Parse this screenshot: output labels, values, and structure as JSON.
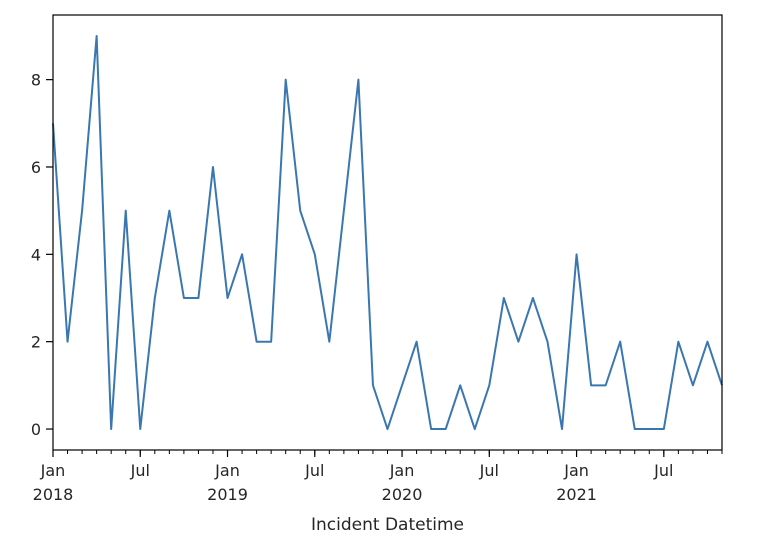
{
  "chart_data": {
    "type": "line",
    "title": "",
    "xlabel": "Incident Datetime",
    "ylabel": "",
    "x_start": "2018-01",
    "x_end": "2021-11",
    "x": [
      "2018-01",
      "2018-02",
      "2018-03",
      "2018-04",
      "2018-05",
      "2018-06",
      "2018-07",
      "2018-08",
      "2018-09",
      "2018-10",
      "2018-11",
      "2018-12",
      "2019-01",
      "2019-02",
      "2019-03",
      "2019-04",
      "2019-05",
      "2019-06",
      "2019-07",
      "2019-08",
      "2019-09",
      "2019-10",
      "2019-11",
      "2019-12",
      "2020-01",
      "2020-02",
      "2020-03",
      "2020-04",
      "2020-05",
      "2020-06",
      "2020-07",
      "2020-08",
      "2020-09",
      "2020-10",
      "2020-11",
      "2020-12",
      "2021-01",
      "2021-02",
      "2021-03",
      "2021-04",
      "2021-05",
      "2021-06",
      "2021-07",
      "2021-08",
      "2021-09",
      "2021-10",
      "2021-11"
    ],
    "series": [
      {
        "color": "#3a77b0",
        "values": [
          7,
          2,
          5,
          9,
          0,
          5,
          0,
          3,
          5,
          3,
          3,
          6,
          3,
          4,
          2,
          2,
          8,
          5,
          4,
          2,
          5,
          8,
          1,
          0,
          1,
          2,
          0,
          0,
          1,
          0,
          1,
          3,
          2,
          3,
          2,
          0,
          4,
          1,
          1,
          2,
          0,
          0,
          0,
          2,
          1,
          2,
          1
        ]
      }
    ],
    "ylim": [
      -0.48,
      9.48
    ],
    "yticks": [
      0,
      2,
      4,
      6,
      8
    ],
    "xticks": [
      {
        "month": "2018-01",
        "label": "Jan",
        "year": "2018"
      },
      {
        "month": "2018-07",
        "label": "Jul",
        "year": ""
      },
      {
        "month": "2019-01",
        "label": "Jan",
        "year": "2019"
      },
      {
        "month": "2019-07",
        "label": "Jul",
        "year": ""
      },
      {
        "month": "2020-01",
        "label": "Jan",
        "year": "2020"
      },
      {
        "month": "2020-07",
        "label": "Jul",
        "year": ""
      },
      {
        "month": "2021-01",
        "label": "Jan",
        "year": "2021"
      },
      {
        "month": "2021-07",
        "label": "Jul",
        "year": ""
      }
    ],
    "grid": false,
    "legend": "none"
  }
}
